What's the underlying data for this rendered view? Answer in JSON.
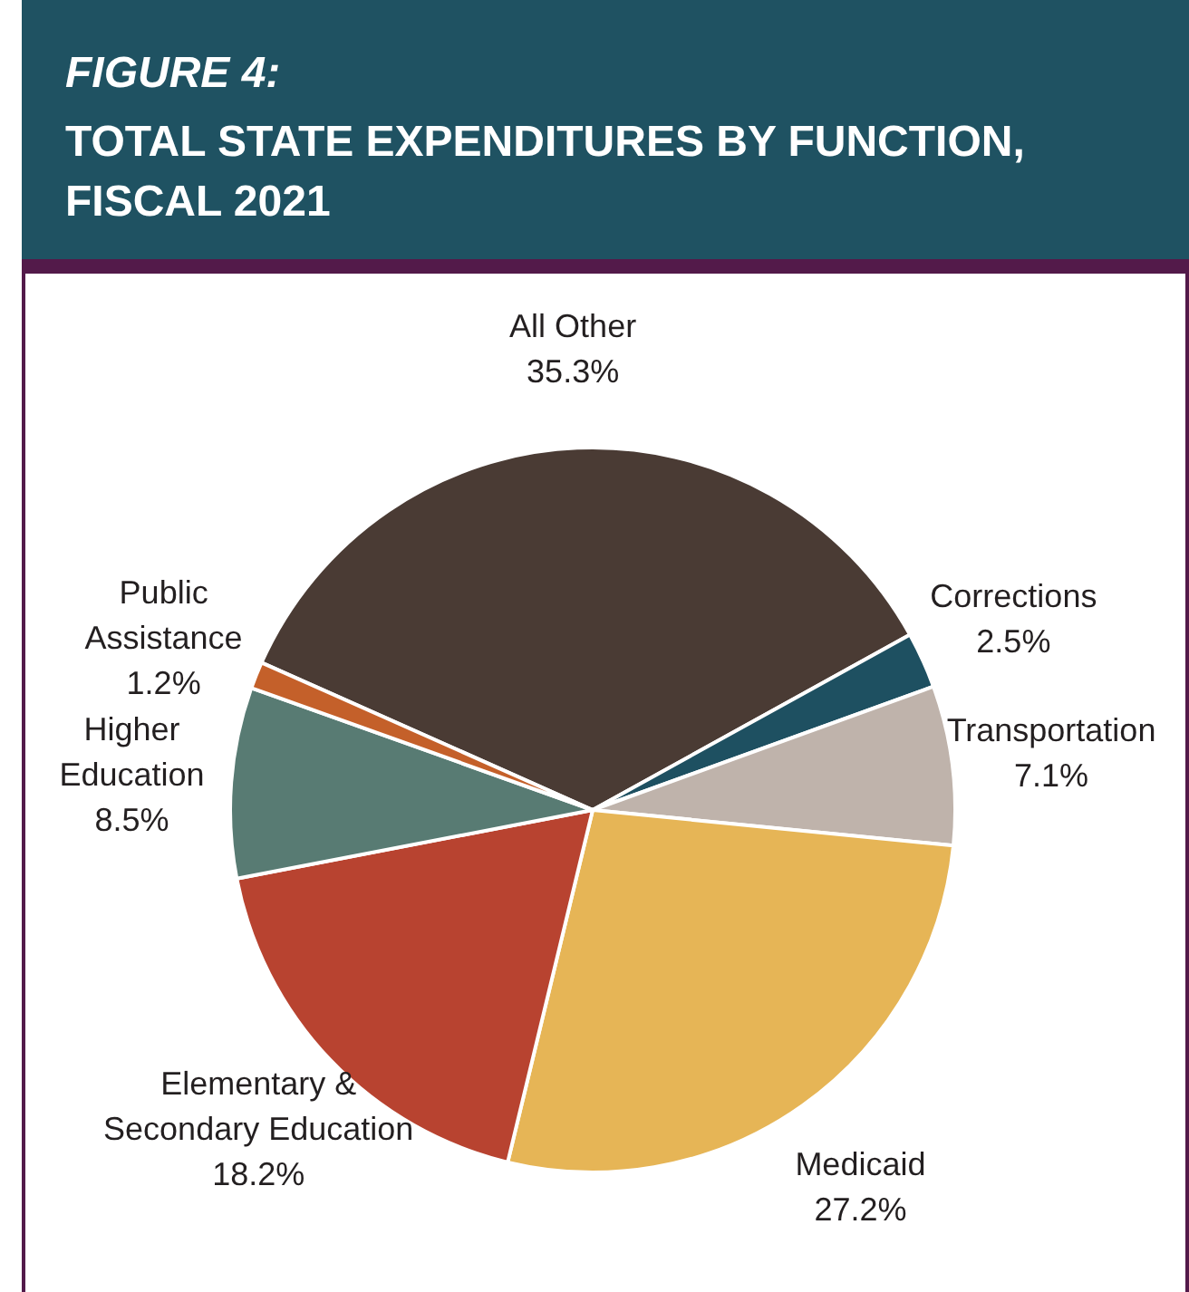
{
  "chart_data": {
    "type": "pie",
    "title": "FIGURE 4:",
    "subtitle": "TOTAL STATE EXPENDITURES BY FUNCTION,\nFISCAL 2021",
    "categories": [
      "All Other",
      "Corrections",
      "Transportation",
      "Medicaid",
      "Elementary &\nSecondary Education",
      "Higher\nEducation",
      "Public\nAssistance"
    ],
    "values": [
      35.3,
      2.5,
      7.1,
      27.2,
      18.2,
      8.5,
      1.2
    ],
    "colors": [
      "#4a3b34",
      "#1e5061",
      "#bfb3ab",
      "#e6b556",
      "#b84330",
      "#587b73",
      "#c4602a"
    ],
    "value_labels": [
      "35.3%",
      "2.5%",
      "7.1%",
      "27.2%",
      "18.2%",
      "8.5%",
      "1.2%"
    ]
  }
}
